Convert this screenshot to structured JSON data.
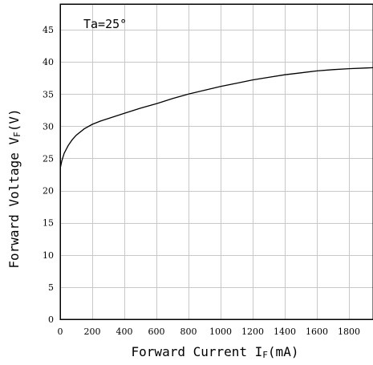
{
  "chart_data": {
    "type": "line",
    "annotation": "Ta=25°",
    "xlabel_main": "Forward Current I",
    "xlabel_sub": "F",
    "xlabel_unit": "(mA)",
    "ylabel_main": "Forward Voltage V",
    "ylabel_sub": "F",
    "ylabel_unit": "(V)",
    "xlim": [
      0,
      1950
    ],
    "ylim": [
      0,
      49
    ],
    "x_ticks": [
      0,
      200,
      400,
      600,
      800,
      1000,
      1200,
      1400,
      1600,
      1800
    ],
    "y_ticks": [
      0,
      5,
      10,
      15,
      20,
      25,
      30,
      35,
      40,
      45
    ],
    "grid": true,
    "series": [
      {
        "x": [
          0,
          10,
          25,
          50,
          75,
          100,
          150,
          200,
          250,
          300,
          400,
          500,
          600,
          700,
          800,
          900,
          1000,
          1100,
          1200,
          1300,
          1400,
          1500,
          1600,
          1700,
          1800,
          1900,
          1950
        ],
        "y": [
          23.4,
          24.6,
          25.8,
          27.0,
          27.9,
          28.6,
          29.6,
          30.3,
          30.8,
          31.2,
          32.0,
          32.8,
          33.5,
          34.3,
          35.0,
          35.6,
          36.2,
          36.7,
          37.2,
          37.6,
          38.0,
          38.3,
          38.6,
          38.8,
          38.95,
          39.05,
          39.1
        ]
      }
    ]
  }
}
